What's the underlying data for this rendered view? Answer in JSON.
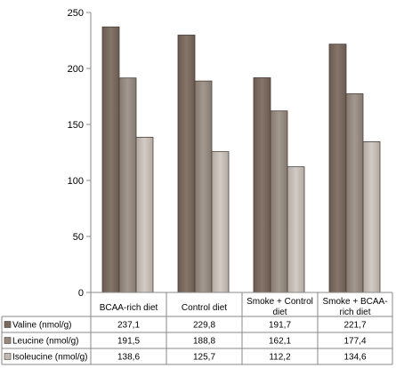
{
  "chart_data": {
    "type": "bar",
    "categories": [
      [
        "BCAA-rich diet"
      ],
      [
        "Control diet"
      ],
      [
        "Smoke + Control",
        "diet"
      ],
      [
        "Smoke + BCAA-",
        "rich diet"
      ]
    ],
    "series": [
      {
        "name": "Valine (nmol/g)",
        "values": [
          237.1,
          229.8,
          191.7,
          221.7
        ],
        "labels": [
          "237,1",
          "229,8",
          "191,7",
          "221,7"
        ],
        "color": "#7a6a5e"
      },
      {
        "name": "Leucine (nmol/g)",
        "values": [
          191.5,
          188.8,
          162.1,
          177.4
        ],
        "labels": [
          "191,5",
          "188,8",
          "162,1",
          "177,4"
        ],
        "color": "#968a80"
      },
      {
        "name": "Isoleucine (nmol/g)",
        "values": [
          138.6,
          125.7,
          112.2,
          134.6
        ],
        "labels": [
          "138,6",
          "125,7",
          "112,2",
          "134,6"
        ],
        "color": "#c2bab3"
      }
    ],
    "yticks": [
      "0",
      "50",
      "100",
      "150",
      "200",
      "250"
    ],
    "ylim": [
      0,
      250
    ],
    "grid": false,
    "legend": "data-table"
  }
}
